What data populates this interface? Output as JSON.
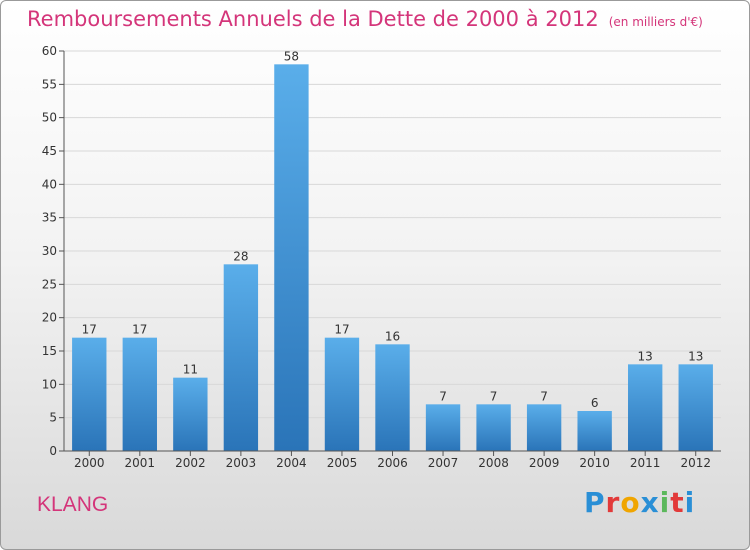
{
  "header": {
    "title": "Remboursements Annuels de la Dette de 2000 à 2012",
    "unit": "(en milliers d'€)"
  },
  "footer": {
    "commune": "KLANG",
    "brand": "Proxiti",
    "brand_letter_colors": [
      "#2a8fd6",
      "#e23a3a",
      "#f0a500",
      "#2a8fd6",
      "#5cb85c",
      "#e23a3a",
      "#2a8fd6"
    ]
  },
  "colors": {
    "bar_top": "#5aaeea",
    "bar_bottom": "#2a74b8",
    "grid": "#d8d8d8",
    "axis_text": "#333333",
    "accent": "#d4357a"
  },
  "chart_data": {
    "type": "bar",
    "categories": [
      "2000",
      "2001",
      "2002",
      "2003",
      "2004",
      "2005",
      "2006",
      "2007",
      "2008",
      "2009",
      "2010",
      "2011",
      "2012"
    ],
    "values": [
      17,
      17,
      11,
      28,
      58,
      17,
      16,
      7,
      7,
      7,
      6,
      13,
      13
    ],
    "title": "Remboursements Annuels de la Dette de 2000 à 2012",
    "subtitle": "(en milliers d'€)",
    "xlabel": "",
    "ylabel": "",
    "ylim": [
      0,
      60
    ],
    "yticks": [
      0,
      5,
      10,
      15,
      20,
      25,
      30,
      35,
      40,
      45,
      50,
      55,
      60
    ],
    "grid": true,
    "data_labels": true
  }
}
